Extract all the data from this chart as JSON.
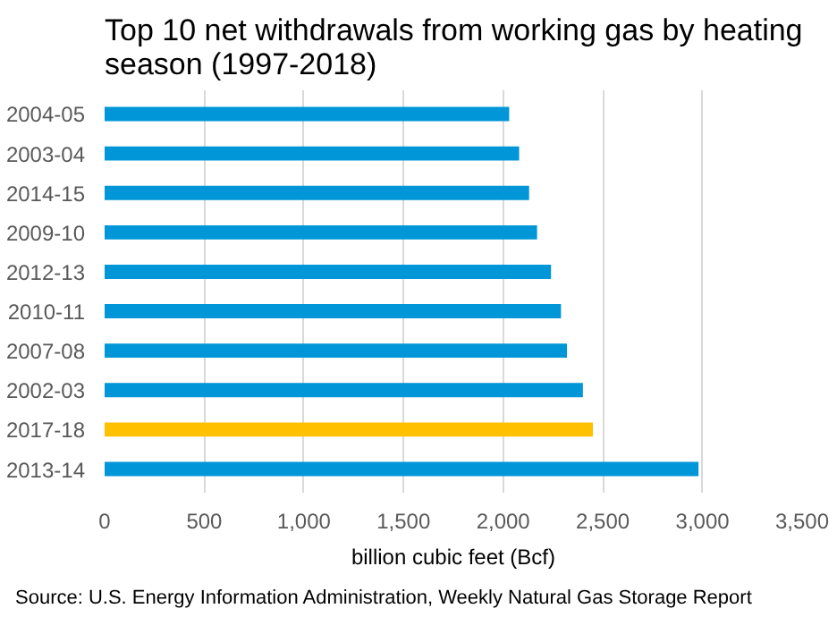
{
  "chart_data": {
    "type": "bar",
    "orientation": "horizontal",
    "title": "Top 10 net withdrawals from working gas by heating\nseason (1997-2018)",
    "categories": [
      "2004-05",
      "2003-04",
      "2014-15",
      "2009-10",
      "2012-13",
      "2010-11",
      "2007-08",
      "2002-03",
      "2017-18",
      "2013-14"
    ],
    "values": [
      2030,
      2080,
      2130,
      2170,
      2240,
      2290,
      2320,
      2400,
      2450,
      2980
    ],
    "colors": [
      "#0096d7",
      "#0096d7",
      "#0096d7",
      "#0096d7",
      "#0096d7",
      "#0096d7",
      "#0096d7",
      "#0096d7",
      "#ffc000",
      "#0096d7"
    ],
    "xlim": [
      0,
      3500
    ],
    "xticks": [
      0,
      {
        "value": 500,
        "label": "500"
      },
      {
        "value": 1000,
        "label": "1,000"
      },
      {
        "value": 1500,
        "label": "1,500"
      },
      {
        "value": 2000,
        "label": "2,000"
      },
      {
        "value": 2500,
        "label": "2,500"
      },
      {
        "value": 3000,
        "label": "3,000"
      },
      {
        "value": 3500,
        "label": "3,500"
      }
    ],
    "xlabel": "billion cubic feet (Bcf)",
    "grid": "x",
    "annotations": [
      "Source: U.S. Energy Information Administration, Weekly Natural Gas Storage Report"
    ]
  }
}
